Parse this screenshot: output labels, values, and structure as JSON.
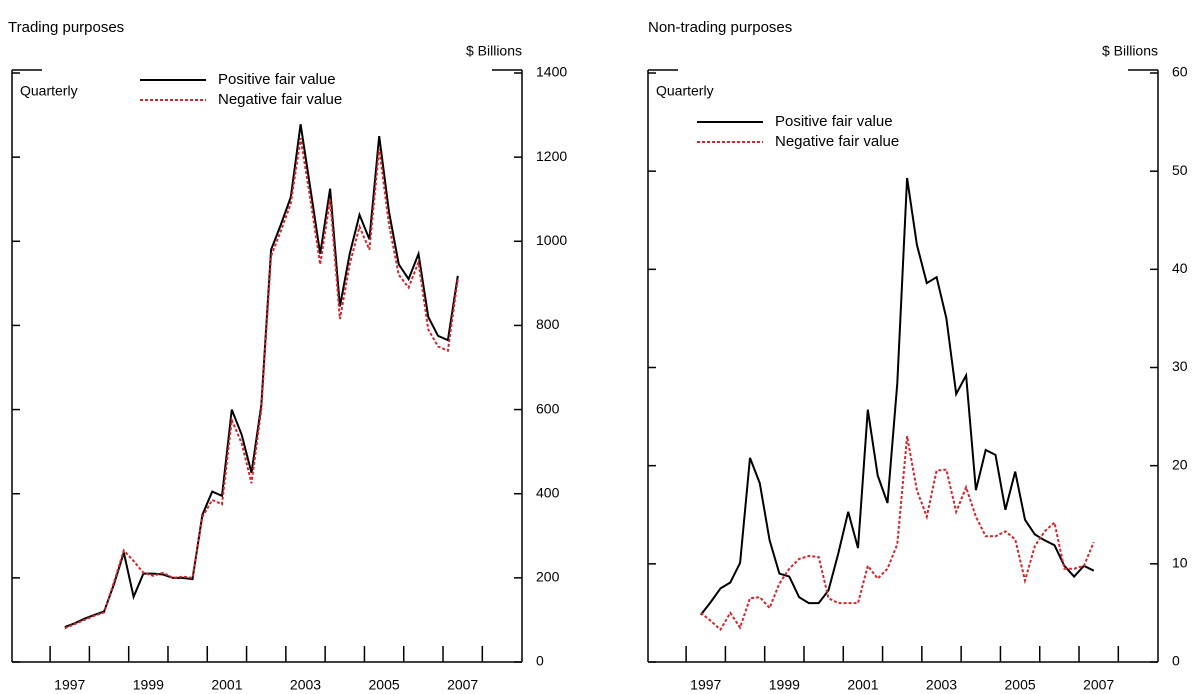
{
  "chart_data": [
    {
      "type": "line",
      "title": "Trading purposes",
      "unit_label": "$ Billions",
      "frequency_label": "Quarterly",
      "x": [
        1997.375,
        1997.625,
        1997.875,
        1998.125,
        1998.375,
        1998.625,
        1998.875,
        1999.125,
        1999.375,
        1999.625,
        1999.875,
        2000.125,
        2000.375,
        2000.625,
        2000.875,
        2001.125,
        2001.375,
        2001.625,
        2001.875,
        2002.125,
        2002.375,
        2002.625,
        2002.875,
        2003.125,
        2003.375,
        2003.625,
        2003.875,
        2004.125,
        2004.375,
        2004.625,
        2004.875,
        2005.125,
        2005.375,
        2005.625,
        2005.875,
        2006.125,
        2006.375,
        2006.625,
        2006.875,
        2007.125,
        2007.375
      ],
      "series": [
        {
          "name": "Positive fair value",
          "color": "#000000",
          "dash": false,
          "values": [
            83,
            92,
            103,
            112,
            120,
            185,
            260,
            155,
            210,
            210,
            208,
            200,
            200,
            197,
            350,
            405,
            395,
            600,
            540,
            450,
            610,
            980,
            1040,
            1105,
            1278,
            1125,
            970,
            1125,
            845,
            970,
            1063,
            1005,
            1250,
            1070,
            945,
            910,
            970,
            820,
            775,
            765,
            918
          ]
        },
        {
          "name": "Negative fair value",
          "color": "#d0282e",
          "dash": true,
          "values": [
            80,
            90,
            100,
            110,
            118,
            190,
            265,
            240,
            212,
            205,
            212,
            200,
            203,
            200,
            345,
            385,
            375,
            575,
            520,
            425,
            600,
            965,
            1025,
            1090,
            1245,
            1100,
            945,
            1100,
            815,
            945,
            1035,
            980,
            1220,
            1040,
            920,
            890,
            950,
            790,
            750,
            740,
            910
          ]
        }
      ],
      "xlim": [
        1996.03,
        2009.01
      ],
      "xticks": [
        {
          "value": 1997.5,
          "label": "1997"
        },
        {
          "value": 1999.5,
          "label": "1999"
        },
        {
          "value": 2001.5,
          "label": "2001"
        },
        {
          "value": 2003.5,
          "label": "2003"
        },
        {
          "value": 2005.5,
          "label": "2005"
        },
        {
          "value": 2007.5,
          "label": "2007"
        }
      ],
      "xtick_marks": [
        1997,
        1998,
        1999,
        2000,
        2001,
        2002,
        2003,
        2004,
        2005,
        2006,
        2007,
        2008
      ],
      "ylim": [
        0,
        1400
      ],
      "yticks": [
        0,
        200,
        400,
        600,
        800,
        1000,
        1200,
        1400
      ]
    },
    {
      "type": "line",
      "title": "Non-trading purposes",
      "unit_label": "$ Billions",
      "frequency_label": "Quarterly",
      "x": [
        1997.375,
        1997.625,
        1997.875,
        1998.125,
        1998.375,
        1998.625,
        1998.875,
        1999.125,
        1999.375,
        1999.625,
        1999.875,
        2000.125,
        2000.375,
        2000.625,
        2000.875,
        2001.125,
        2001.375,
        2001.625,
        2001.875,
        2002.125,
        2002.375,
        2002.625,
        2002.875,
        2003.125,
        2003.375,
        2003.625,
        2003.875,
        2004.125,
        2004.375,
        2004.625,
        2004.875,
        2005.125,
        2005.375,
        2005.625,
        2005.875,
        2006.125,
        2006.375,
        2006.625,
        2006.875,
        2007.125,
        2007.375
      ],
      "series": [
        {
          "name": "Positive fair value",
          "color": "#000000",
          "dash": false,
          "values": [
            4.8,
            6.1,
            7.5,
            8.1,
            10.1,
            20.8,
            18.2,
            12.4,
            9,
            8.7,
            6.6,
            6,
            6,
            7.3,
            11.1,
            15.3,
            11.6,
            25.7,
            19,
            16.2,
            28.4,
            49.3,
            42.5,
            38.6,
            39.2,
            35,
            27.3,
            29.2,
            17.5,
            21.6,
            21.1,
            15.5,
            19.4,
            14.5,
            13,
            12.4,
            11.9,
            9.8,
            8.7,
            9.8,
            9.3
          ]
        },
        {
          "name": "Negative fair value",
          "color": "#d0282e",
          "dash": true,
          "values": [
            5,
            4.2,
            3.3,
            5,
            3.5,
            6.5,
            6.6,
            5.5,
            8,
            9.5,
            10.5,
            10.8,
            10.7,
            6.5,
            6,
            6,
            6,
            9.8,
            8.5,
            9.5,
            12,
            23,
            17.5,
            14.8,
            19.5,
            19.6,
            15.3,
            17.8,
            14.8,
            12.8,
            12.8,
            13.3,
            12.5,
            8.3,
            11.8,
            13.3,
            14.2,
            9.5,
            9.5,
            9.8,
            12.2
          ]
        }
      ],
      "xlim": [
        1996.03,
        2009.01
      ],
      "xticks": [
        {
          "value": 1997.5,
          "label": "1997"
        },
        {
          "value": 1999.5,
          "label": "1999"
        },
        {
          "value": 2001.5,
          "label": "2001"
        },
        {
          "value": 2003.5,
          "label": "2003"
        },
        {
          "value": 2005.5,
          "label": "2005"
        },
        {
          "value": 2007.5,
          "label": "2007"
        }
      ],
      "xtick_marks": [
        1997,
        1998,
        1999,
        2000,
        2001,
        2002,
        2003,
        2004,
        2005,
        2006,
        2007,
        2008
      ],
      "ylim": [
        0,
        60
      ],
      "yticks": [
        0,
        10,
        20,
        30,
        40,
        50,
        60
      ]
    }
  ]
}
